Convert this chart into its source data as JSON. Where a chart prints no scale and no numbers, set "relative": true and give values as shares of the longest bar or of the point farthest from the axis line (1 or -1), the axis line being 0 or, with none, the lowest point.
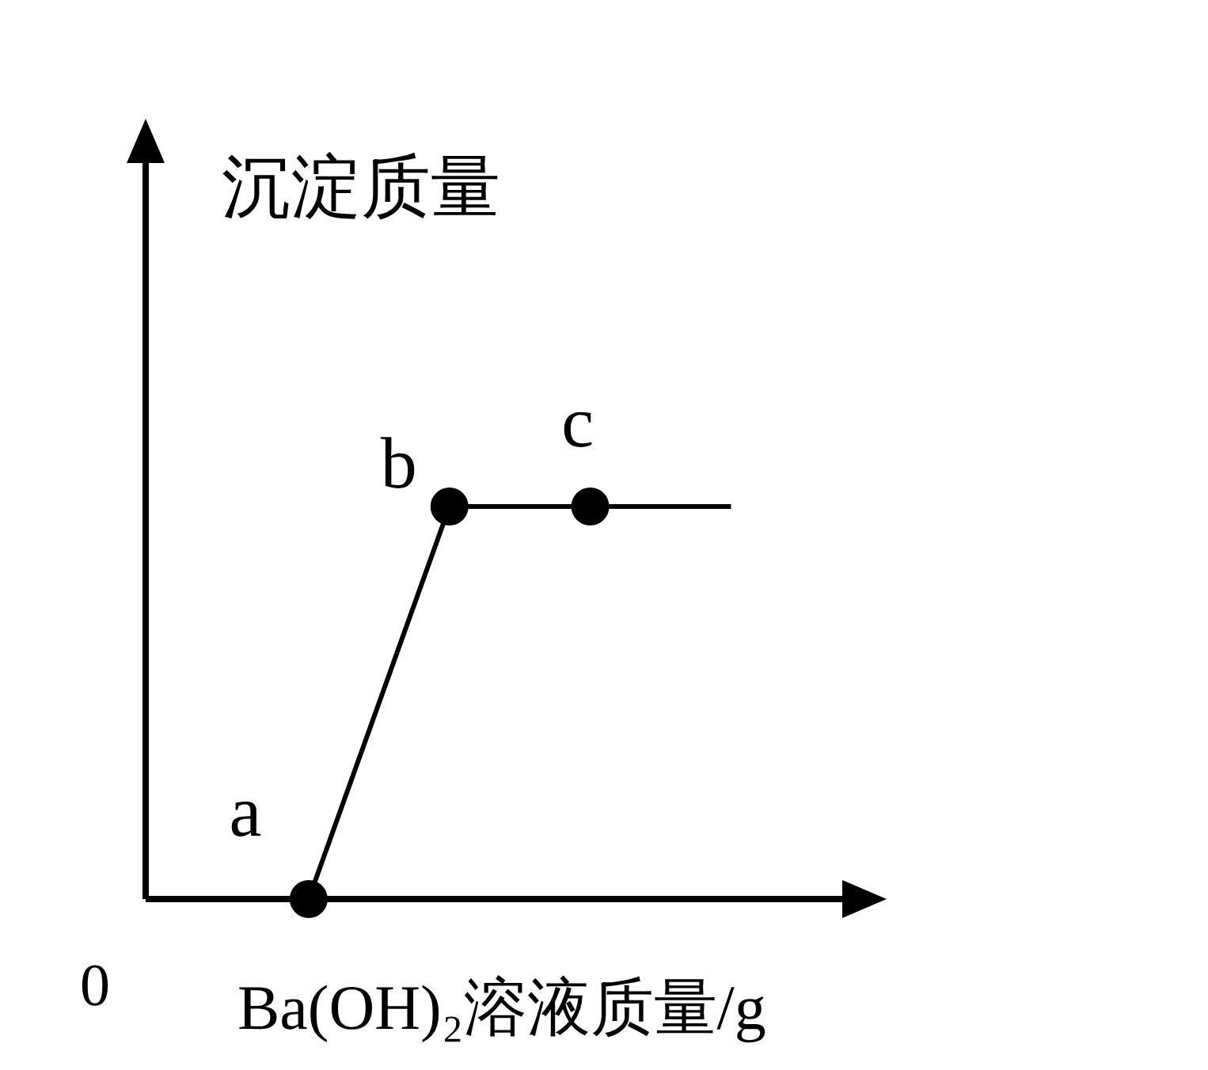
{
  "chart_data": {
    "type": "line",
    "relative": true,
    "xlabel": "Ba(OH)₂溶液质量/g",
    "ylabel": "沉淀质量",
    "categories": [
      null,
      null,
      null,
      null
    ],
    "series": [
      {
        "color": "#000000",
        "marker": "circle",
        "line_style": "solid",
        "values": [
          0,
          1,
          1,
          1
        ]
      }
    ],
    "annotations": [
      "0",
      "a",
      "b",
      "c"
    ]
  }
}
